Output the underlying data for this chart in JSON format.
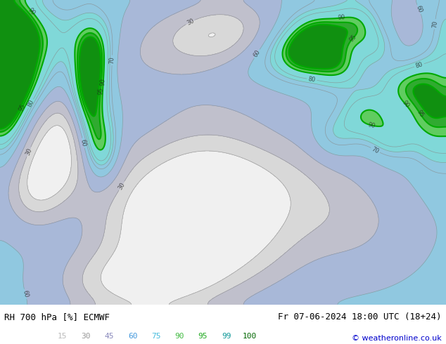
{
  "title_left": "RH 700 hPa [%] ECMWF",
  "title_right": "Fr 07-06-2024 18:00 UTC (18+24)",
  "copyright": "© weatheronline.co.uk",
  "colorbar_levels": [
    15,
    30,
    45,
    60,
    75,
    90,
    95,
    99,
    100
  ],
  "cb_label_colors": [
    "#bbbbbb",
    "#999999",
    "#8888bb",
    "#4499dd",
    "#44bbdd",
    "#44bb44",
    "#22aa22",
    "#119999",
    "#006600"
  ],
  "fig_width": 6.34,
  "fig_height": 4.9,
  "dpi": 100,
  "map_bg": "#c8ccd8",
  "bottom_bg": "#ffffff",
  "fill_colors": [
    "#f0f0f0",
    "#d8d8d8",
    "#c0c0cc",
    "#a8b8d8",
    "#90c8e0",
    "#80d8d8",
    "#60cc60",
    "#30aa30",
    "#109010",
    "#008000"
  ],
  "contour_thin_color": "#888888",
  "contour_green_color": "#00aa00",
  "label_number_color": "#444444"
}
